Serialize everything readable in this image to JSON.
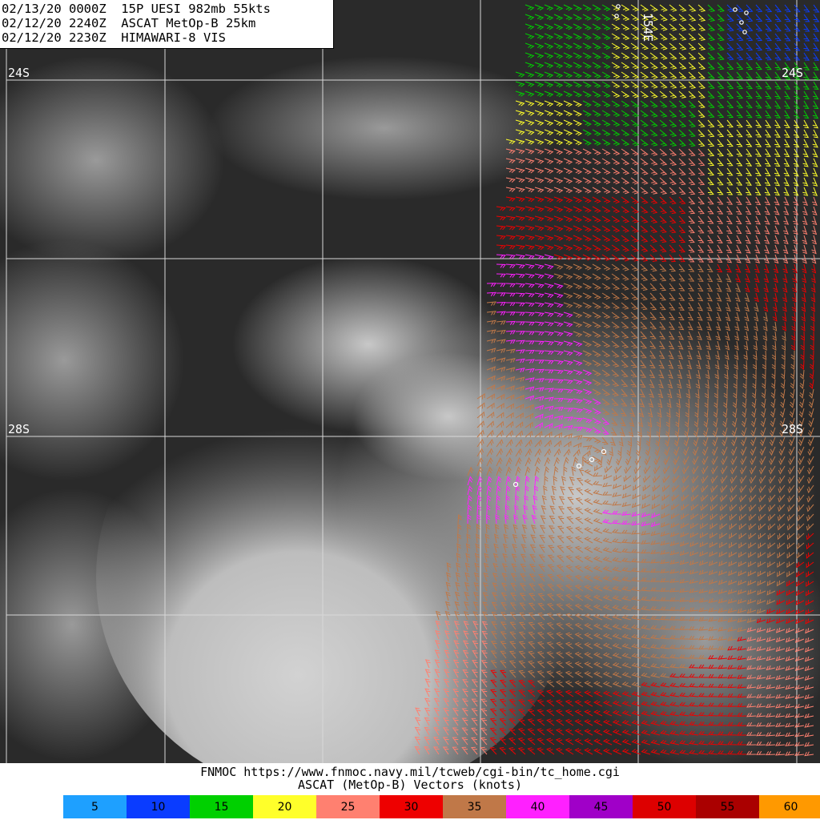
{
  "header": {
    "line1": "02/13/20 0000Z  15P UESI 982mb 55kts",
    "line2": "02/12/20 2240Z  ASCAT MetOp-B 25km",
    "line3": "02/12/20 2230Z  HIMAWARI-8 VIS"
  },
  "grid": {
    "lat_labels": [
      "24S",
      "24S",
      "28S",
      "28S"
    ],
    "lon_label": "154E"
  },
  "footer": {
    "credit": "FNMOC https://www.fnmoc.navy.mil/tcweb/cgi-bin/tc_home.cgi",
    "sublabel": "ASCAT (MetOp-B) Vectors (knots)"
  },
  "legend": [
    {
      "label": "5",
      "color": "#1ea0ff"
    },
    {
      "label": "10",
      "color": "#0a3cff"
    },
    {
      "label": "15",
      "color": "#00d000"
    },
    {
      "label": "20",
      "color": "#ffff2a"
    },
    {
      "label": "25",
      "color": "#ff8070"
    },
    {
      "label": "30",
      "color": "#ee0000"
    },
    {
      "label": "35",
      "color": "#c07848"
    },
    {
      "label": "40",
      "color": "#ff20ff"
    },
    {
      "label": "45",
      "color": "#a000c8"
    },
    {
      "label": "50",
      "color": "#dd0000"
    },
    {
      "label": "55",
      "color": "#aa0000"
    },
    {
      "label": "60",
      "color": "#ff9900"
    }
  ]
}
